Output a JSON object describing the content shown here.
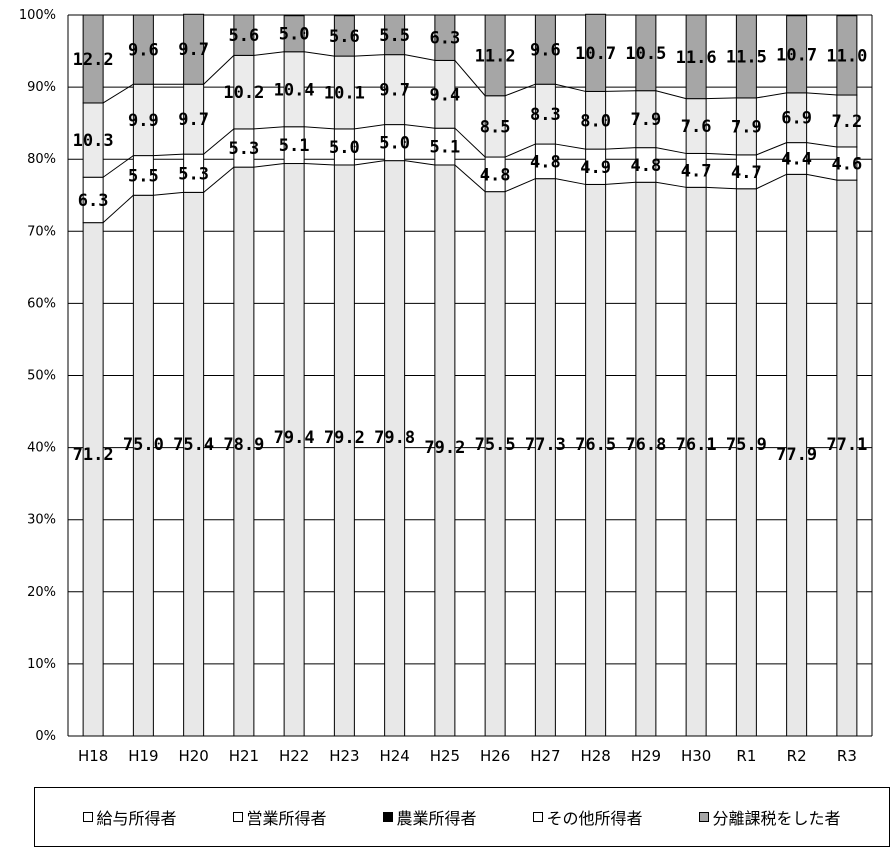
{
  "chart_data": {
    "type": "bar",
    "stacked": true,
    "percent": true,
    "categories": [
      "H18",
      "H19",
      "H20",
      "H21",
      "H22",
      "H23",
      "H24",
      "H25",
      "H26",
      "H27",
      "H28",
      "H29",
      "H30",
      "R1",
      "R2",
      "R3"
    ],
    "series": [
      {
        "name": "給与所得者",
        "color": "#e8e8e8",
        "values": [
          71.2,
          75.0,
          75.4,
          78.9,
          79.4,
          79.2,
          79.8,
          79.2,
          75.5,
          77.3,
          76.5,
          76.8,
          76.1,
          75.9,
          77.9,
          77.1
        ]
      },
      {
        "name": "営業所得者",
        "color": "#ffffff",
        "values": [
          6.3,
          5.5,
          5.3,
          5.3,
          5.1,
          5.0,
          5.0,
          5.1,
          4.8,
          4.8,
          4.9,
          4.8,
          4.7,
          4.7,
          4.4,
          4.6
        ]
      },
      {
        "name": "農業所得者",
        "color": "#000000",
        "values": [
          0,
          0,
          0,
          0,
          0,
          0,
          0,
          0,
          0,
          0,
          0,
          0,
          0,
          0,
          0,
          0
        ]
      },
      {
        "name": "その他所得者",
        "color": "#ebebeb",
        "values": [
          10.3,
          9.9,
          9.7,
          10.2,
          10.4,
          10.1,
          9.7,
          9.4,
          8.5,
          8.3,
          8.0,
          7.9,
          7.6,
          7.9,
          6.9,
          7.2
        ]
      },
      {
        "name": "分離課税をした者",
        "color": "#a6a6a6",
        "values": [
          12.2,
          9.6,
          9.7,
          5.6,
          5.0,
          5.6,
          5.5,
          6.3,
          11.2,
          9.6,
          10.7,
          10.5,
          11.6,
          11.5,
          10.7,
          11.0
        ]
      }
    ],
    "value_labels": {
      "給与所得者": [
        "71.2",
        "75.0",
        "75.4",
        "78.9",
        "79.4",
        "79.2",
        "79.8",
        "79.2",
        "75.5",
        "77.3",
        "76.5",
        "76.8",
        "76.1",
        "75.9",
        "77.9",
        "77.1"
      ],
      "営業所得者": [
        "6.3",
        "5.5",
        "5.3",
        "5.3",
        "5.1",
        "5.0",
        "5.0",
        "5.1",
        "4.8",
        "4.8",
        "4.9",
        "4.8",
        "4.7",
        "4.7",
        "4.4",
        "4.6"
      ],
      "その他所得者": [
        "10.3",
        "9.9",
        "9.7",
        "10.2",
        "10.4",
        "10.1",
        "9.7",
        "9.4",
        "8.5",
        "8.3",
        "8.0",
        "7.9",
        "7.6",
        "7.9",
        "6.9",
        "7.2"
      ],
      "分離課税をした者": [
        "12.2",
        "9.6",
        "9.7",
        "5.6",
        "5.0",
        "5.6",
        "5.5",
        "6.3",
        "11.2",
        "9.6",
        "10.7",
        "10.5",
        "11.6",
        "11.5",
        "10.7",
        "11.0"
      ]
    },
    "ylim": [
      0,
      100
    ],
    "yticks": [
      "0%",
      "10%",
      "20%",
      "30%",
      "40%",
      "50%",
      "60%",
      "70%",
      "80%",
      "90%",
      "100%"
    ],
    "grid": true,
    "legend_position": "bottom",
    "title": "",
    "xlabel": "",
    "ylabel": ""
  },
  "legend": {
    "items": [
      {
        "label": "給与所得者",
        "color": "#ffffff"
      },
      {
        "label": "営業所得者",
        "color": "#ffffff"
      },
      {
        "label": "農業所得者",
        "color": "#000000"
      },
      {
        "label": "その他所得者",
        "color": "#ffffff"
      },
      {
        "label": "分離課税をした者",
        "color": "#a6a6a6"
      }
    ]
  }
}
